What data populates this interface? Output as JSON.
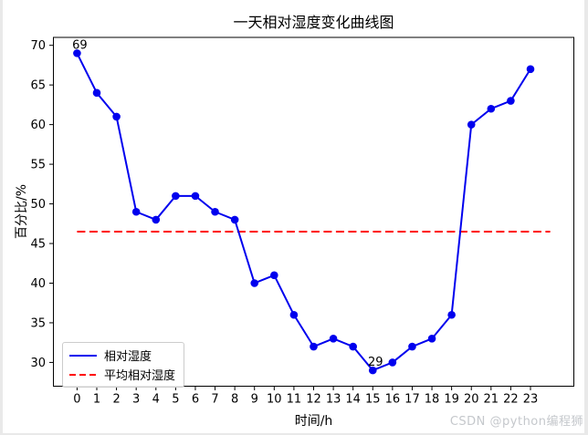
{
  "watermark": "CSDN @python编程狮",
  "chart_data": {
    "type": "line",
    "title": "一天相对湿度变化曲线图",
    "xlabel": "时间/h",
    "ylabel": "百分比/%",
    "x": [
      0,
      1,
      2,
      3,
      4,
      5,
      6,
      7,
      8,
      9,
      10,
      11,
      12,
      13,
      14,
      15,
      16,
      17,
      18,
      19,
      20,
      21,
      22,
      23
    ],
    "series": [
      {
        "name": "相对湿度",
        "type": "line-with-markers",
        "style": "solid",
        "color": "#0000ee",
        "values": [
          69,
          64,
          61,
          49,
          48,
          51,
          51,
          49,
          48,
          40,
          41,
          36,
          32,
          33,
          32,
          29,
          30,
          32,
          33,
          36,
          60,
          62,
          63,
          67
        ]
      },
      {
        "name": "平均相对湿度",
        "type": "horizontal-line",
        "style": "dashed",
        "color": "#ff0000",
        "value": 46.5,
        "x_start": 0,
        "x_end": 24
      }
    ],
    "annotations": [
      {
        "x": 0,
        "y": 69,
        "label": "69"
      },
      {
        "x": 15,
        "y": 29,
        "label": "29"
      }
    ],
    "xticks": [
      0,
      1,
      2,
      3,
      4,
      5,
      6,
      7,
      8,
      9,
      10,
      11,
      12,
      13,
      14,
      15,
      16,
      17,
      18,
      19,
      20,
      21,
      22,
      23
    ],
    "yticks": [
      30,
      35,
      40,
      45,
      50,
      55,
      60,
      65,
      70
    ],
    "xlim": [
      -1.2,
      25.2
    ],
    "ylim": [
      27,
      71
    ],
    "grid": false,
    "legend_position": "lower left",
    "axis_color": "#000000",
    "background_color": "#ffffff"
  }
}
